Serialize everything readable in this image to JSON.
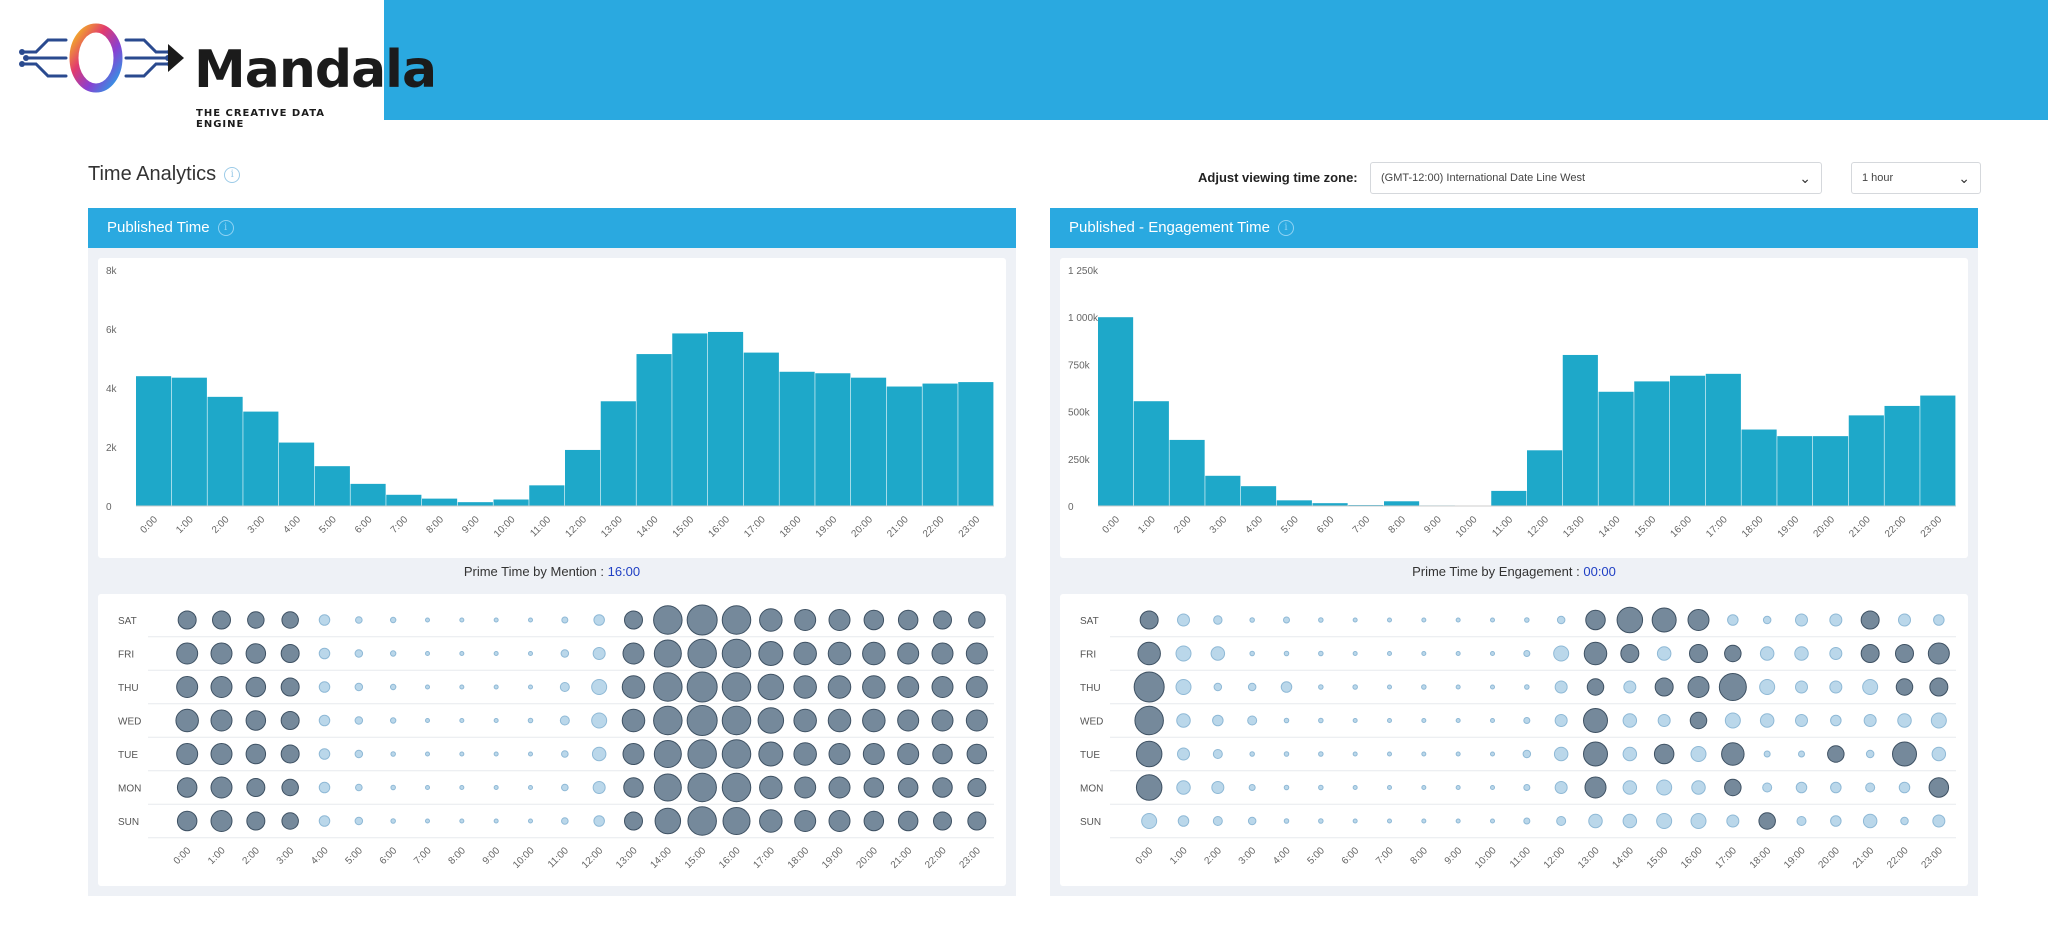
{
  "header": {
    "logo_text": "Mandala",
    "logo_tagline": "THE CREATIVE DATA ENGINE",
    "colors": {
      "bar": "#2aa9e0"
    }
  },
  "page": {
    "title": "Time Analytics",
    "info_icon": "info-circle-icon",
    "timezone_label": "Adjust viewing time zone:",
    "timezone_value": "(GMT-12:00) International Date Line West",
    "interval_value": "1 hour"
  },
  "panels": [
    {
      "id": "published",
      "title": "Published Time",
      "prime_label": "Prime Time by Mention :",
      "prime_value": "16:00",
      "histogram": {
        "type": "bar",
        "y_ticks": [
          "0",
          "2k",
          "4k",
          "6k",
          "8k"
        ],
        "y_max": 8000,
        "values": [
          4400,
          4350,
          3700,
          3200,
          2150,
          1350,
          750,
          380,
          250,
          130,
          220,
          700,
          1900,
          3550,
          5150,
          5850,
          5900,
          5200,
          4550,
          4500,
          4350,
          4050,
          4150,
          4200
        ]
      },
      "bubbles": {
        "days": [
          "SAT",
          "FRI",
          "THU",
          "WED",
          "TUE",
          "MON",
          "SUN"
        ],
        "sizes": [
          [
            0.6,
            0.6,
            0.55,
            0.55,
            0.35,
            0.22,
            0.18,
            0.12,
            0.1,
            0.1,
            0.12,
            0.2,
            0.35,
            0.6,
            0.95,
            1.0,
            0.95,
            0.75,
            0.7,
            0.7,
            0.65,
            0.65,
            0.6,
            0.55
          ],
          [
            0.7,
            0.7,
            0.65,
            0.6,
            0.35,
            0.25,
            0.18,
            0.12,
            0.1,
            0.1,
            0.12,
            0.25,
            0.4,
            0.7,
            0.9,
            0.95,
            0.95,
            0.8,
            0.75,
            0.75,
            0.75,
            0.7,
            0.7,
            0.7
          ],
          [
            0.7,
            0.7,
            0.65,
            0.6,
            0.35,
            0.25,
            0.18,
            0.12,
            0.1,
            0.1,
            0.12,
            0.3,
            0.5,
            0.75,
            0.95,
            1.0,
            0.95,
            0.85,
            0.75,
            0.75,
            0.75,
            0.7,
            0.7,
            0.7
          ],
          [
            0.75,
            0.7,
            0.65,
            0.6,
            0.35,
            0.25,
            0.18,
            0.12,
            0.1,
            0.1,
            0.15,
            0.3,
            0.5,
            0.75,
            0.95,
            1.0,
            0.95,
            0.85,
            0.75,
            0.75,
            0.75,
            0.7,
            0.7,
            0.7
          ],
          [
            0.7,
            0.7,
            0.65,
            0.6,
            0.35,
            0.25,
            0.15,
            0.12,
            0.1,
            0.1,
            0.12,
            0.22,
            0.45,
            0.7,
            0.9,
            0.95,
            0.95,
            0.8,
            0.75,
            0.7,
            0.7,
            0.7,
            0.65,
            0.65
          ],
          [
            0.65,
            0.7,
            0.6,
            0.55,
            0.35,
            0.22,
            0.15,
            0.12,
            0.1,
            0.1,
            0.12,
            0.22,
            0.4,
            0.65,
            0.9,
            0.95,
            0.95,
            0.75,
            0.7,
            0.7,
            0.65,
            0.65,
            0.65,
            0.6
          ],
          [
            0.65,
            0.7,
            0.6,
            0.55,
            0.35,
            0.25,
            0.15,
            0.12,
            0.1,
            0.1,
            0.12,
            0.22,
            0.35,
            0.6,
            0.85,
            0.95,
            0.9,
            0.75,
            0.7,
            0.7,
            0.65,
            0.65,
            0.6,
            0.6
          ]
        ]
      }
    },
    {
      "id": "engagement",
      "title": "Published - Engagement Time",
      "prime_label": "Prime Time by Engagement :",
      "prime_value": "00:00",
      "histogram": {
        "type": "bar",
        "y_ticks": [
          "0",
          "250k",
          "500k",
          "750k",
          "1 000k",
          "1 250k"
        ],
        "y_max": 1250000,
        "values": [
          1000000,
          555000,
          350000,
          160000,
          105000,
          30000,
          15000,
          5000,
          25000,
          3000,
          2000,
          80000,
          295000,
          800000,
          605000,
          660000,
          690000,
          700000,
          405000,
          370000,
          370000,
          480000,
          530000,
          585000
        ]
      },
      "bubbles": {
        "days": [
          "SAT",
          "FRI",
          "THU",
          "WED",
          "TUE",
          "MON",
          "SUN"
        ],
        "sizes": [
          [
            0.6,
            0.4,
            0.28,
            0.15,
            0.2,
            0.15,
            0.12,
            0.1,
            0.1,
            0.1,
            0.1,
            0.15,
            0.25,
            0.65,
            0.85,
            0.8,
            0.7,
            0.35,
            0.25,
            0.4,
            0.4,
            0.6,
            0.4,
            0.35
          ],
          [
            0.75,
            0.5,
            0.45,
            0.15,
            0.15,
            0.15,
            0.12,
            0.1,
            0.1,
            0.1,
            0.1,
            0.2,
            0.5,
            0.75,
            0.6,
            0.45,
            0.6,
            0.55,
            0.45,
            0.45,
            0.4,
            0.6,
            0.6,
            0.7
          ],
          [
            1.0,
            0.5,
            0.25,
            0.25,
            0.35,
            0.15,
            0.15,
            0.12,
            0.15,
            0.1,
            0.1,
            0.15,
            0.4,
            0.55,
            0.4,
            0.6,
            0.7,
            0.9,
            0.5,
            0.4,
            0.4,
            0.5,
            0.55,
            0.6
          ],
          [
            0.95,
            0.45,
            0.35,
            0.3,
            0.15,
            0.15,
            0.12,
            0.1,
            0.1,
            0.1,
            0.1,
            0.2,
            0.4,
            0.8,
            0.45,
            0.4,
            0.55,
            0.5,
            0.45,
            0.4,
            0.35,
            0.4,
            0.45,
            0.5
          ],
          [
            0.85,
            0.4,
            0.3,
            0.15,
            0.15,
            0.15,
            0.12,
            0.1,
            0.1,
            0.1,
            0.1,
            0.25,
            0.45,
            0.8,
            0.45,
            0.65,
            0.5,
            0.75,
            0.2,
            0.2,
            0.55,
            0.25,
            0.8,
            0.45
          ],
          [
            0.85,
            0.45,
            0.4,
            0.2,
            0.15,
            0.15,
            0.12,
            0.1,
            0.1,
            0.1,
            0.1,
            0.2,
            0.4,
            0.7,
            0.45,
            0.5,
            0.45,
            0.55,
            0.3,
            0.35,
            0.35,
            0.3,
            0.35,
            0.65
          ],
          [
            0.5,
            0.35,
            0.3,
            0.25,
            0.15,
            0.15,
            0.12,
            0.1,
            0.1,
            0.1,
            0.1,
            0.2,
            0.3,
            0.45,
            0.45,
            0.5,
            0.5,
            0.4,
            0.55,
            0.3,
            0.35,
            0.45,
            0.25,
            0.4
          ]
        ]
      }
    }
  ],
  "hours": [
    "0:00",
    "1:00",
    "2:00",
    "3:00",
    "4:00",
    "5:00",
    "6:00",
    "7:00",
    "8:00",
    "9:00",
    "10:00",
    "11:00",
    "12:00",
    "13:00",
    "14:00",
    "15:00",
    "16:00",
    "17:00",
    "18:00",
    "19:00",
    "20:00",
    "21:00",
    "22:00",
    "23:00"
  ],
  "colors": {
    "bar_fill": "#1ea8c9",
    "bubble_dark": "#5d7489",
    "bubble_light": "#a9cde5",
    "prime_value": "#1f3fc4"
  }
}
